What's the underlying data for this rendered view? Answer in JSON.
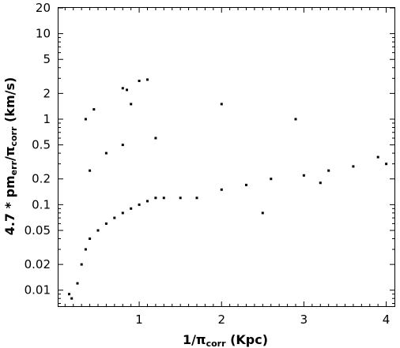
{
  "chart_data": {
    "type": "scatter",
    "title": "",
    "xlabel": {
      "prefix": "1/",
      "symbol": "π",
      "sub": "corr",
      "suffix": " (Kpc)"
    },
    "ylabel": {
      "prefix": "4.7 * pm",
      "sub1": "err",
      "mid": "/",
      "symbol": "π",
      "sub2": "corr",
      "suffix": " (km/s)"
    },
    "x_scale": "linear",
    "y_scale": "log",
    "xlim": [
      0.02,
      4.1
    ],
    "ylim": [
      0.0065,
      20
    ],
    "x_ticks": [
      1,
      2,
      3,
      4
    ],
    "x_tick_labels": [
      "1",
      "2",
      "3",
      "4"
    ],
    "y_ticks": [
      0.01,
      0.02,
      0.05,
      0.1,
      0.2,
      0.5,
      1,
      2,
      5,
      10,
      20
    ],
    "y_tick_labels": [
      "0.01",
      "0.02",
      "0.05",
      "0.1",
      "0.2",
      "0.5",
      "1",
      "2",
      "5",
      "10",
      "20"
    ],
    "grid": false,
    "legend": "none",
    "marker_color": "#000000",
    "series": [
      {
        "values": [
          [
            0.25,
            0.012
          ],
          [
            0.3,
            0.02
          ],
          [
            0.35,
            0.03
          ],
          [
            0.4,
            0.04
          ],
          [
            0.5,
            0.05
          ],
          [
            0.6,
            0.06
          ],
          [
            0.7,
            0.07
          ],
          [
            0.8,
            0.08
          ],
          [
            0.9,
            0.09
          ],
          [
            1.0,
            0.1
          ],
          [
            1.1,
            0.11
          ],
          [
            1.2,
            0.12
          ],
          [
            1.3,
            0.12
          ],
          [
            1.5,
            0.12
          ],
          [
            1.7,
            0.12
          ],
          [
            2.0,
            0.15
          ],
          [
            2.3,
            0.17
          ],
          [
            2.6,
            0.2
          ],
          [
            3.0,
            0.22
          ],
          [
            3.3,
            0.25
          ],
          [
            3.6,
            0.28
          ],
          [
            4.0,
            0.3
          ],
          [
            0.4,
            0.25
          ],
          [
            0.6,
            0.4
          ],
          [
            0.8,
            0.5
          ],
          [
            1.2,
            0.6
          ],
          [
            1.0,
            2.8
          ],
          [
            1.1,
            2.9
          ],
          [
            0.8,
            2.3
          ],
          [
            0.85,
            2.2
          ],
          [
            0.9,
            1.5
          ],
          [
            2.0,
            1.5
          ],
          [
            2.9,
            1.0
          ],
          [
            0.35,
            1.0
          ],
          [
            0.45,
            1.3
          ],
          [
            0.15,
            0.009
          ],
          [
            0.18,
            0.008
          ],
          [
            2.5,
            0.08
          ],
          [
            3.2,
            0.18
          ],
          [
            3.9,
            0.36
          ]
        ]
      }
    ]
  }
}
